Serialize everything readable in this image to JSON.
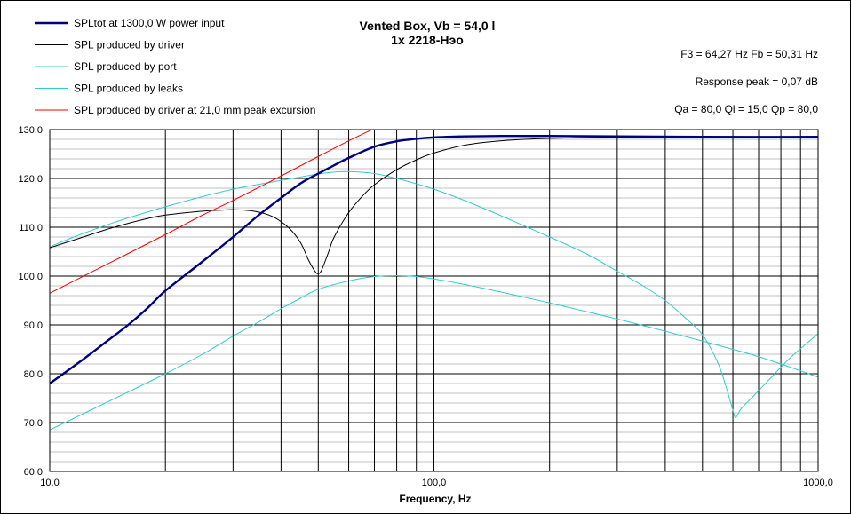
{
  "chart_data": {
    "type": "line",
    "title": "Vented Box, Vb = 54,0 l",
    "subtitle": "1x 2218-Нэо",
    "xlabel": "Frequency, Hz",
    "ylabel": "",
    "x_scale": "log",
    "xlim": [
      10,
      1000
    ],
    "ylim": [
      60,
      130
    ],
    "x_tick_labels": [
      {
        "value": 10,
        "label": "10,0"
      },
      {
        "value": 100,
        "label": "100,0"
      },
      {
        "value": 1000,
        "label": "1000,0"
      }
    ],
    "y_tick_labels": [
      {
        "value": 60,
        "label": "60,0"
      },
      {
        "value": 70,
        "label": "70,0"
      },
      {
        "value": 80,
        "label": "80,0"
      },
      {
        "value": 90,
        "label": "90,0"
      },
      {
        "value": 100,
        "label": "100,0"
      },
      {
        "value": 110,
        "label": "110,0"
      },
      {
        "value": 120,
        "label": "120,0"
      },
      {
        "value": 130,
        "label": "130,0"
      }
    ],
    "grid": true,
    "legend_position": "top-left",
    "info": {
      "line1": "F3 = 64,27  Hz   Fb = 50,31  Hz",
      "line2": "Response peak = 0,07 dB",
      "line3": "Qa = 80,0   Ql = 15,0   Qp = 80,0"
    },
    "series": [
      {
        "name": "SPLtot at 1300,0 W power input",
        "color": "#000080",
        "width": 2.4,
        "points": [
          [
            10,
            78
          ],
          [
            12,
            82.5
          ],
          [
            14,
            86.5
          ],
          [
            16,
            90
          ],
          [
            18,
            93.5
          ],
          [
            20,
            97
          ],
          [
            25,
            103
          ],
          [
            30,
            108
          ],
          [
            35,
            112.5
          ],
          [
            40,
            116
          ],
          [
            45,
            119
          ],
          [
            50,
            121
          ],
          [
            55,
            122.7
          ],
          [
            60,
            124.2
          ],
          [
            70,
            126.5
          ],
          [
            80,
            127.6
          ],
          [
            90,
            128.1
          ],
          [
            100,
            128.4
          ],
          [
            120,
            128.6
          ],
          [
            150,
            128.7
          ],
          [
            200,
            128.7
          ],
          [
            300,
            128.6
          ],
          [
            500,
            128.5
          ],
          [
            1000,
            128.5
          ]
        ]
      },
      {
        "name": "SPL produced by driver",
        "color": "#000000",
        "width": 1,
        "points": [
          [
            10,
            105.8
          ],
          [
            12,
            107.8
          ],
          [
            14,
            109.5
          ],
          [
            16,
            110.8
          ],
          [
            18,
            111.8
          ],
          [
            20,
            112.5
          ],
          [
            25,
            113.3
          ],
          [
            28,
            113.5
          ],
          [
            30,
            113.6
          ],
          [
            34,
            113.3
          ],
          [
            38,
            112.2
          ],
          [
            42,
            109.8
          ],
          [
            45,
            106.8
          ],
          [
            47,
            103.5
          ],
          [
            49,
            101
          ],
          [
            50,
            100.5
          ],
          [
            51,
            101.2
          ],
          [
            53,
            104.6
          ],
          [
            55,
            108
          ],
          [
            60,
            113
          ],
          [
            65,
            116.3
          ],
          [
            70,
            118.7
          ],
          [
            80,
            121.8
          ],
          [
            90,
            123.8
          ],
          [
            100,
            125.2
          ],
          [
            120,
            126.8
          ],
          [
            150,
            127.7
          ],
          [
            200,
            128.2
          ],
          [
            300,
            128.4
          ],
          [
            500,
            128.5
          ],
          [
            1000,
            128.5
          ]
        ]
      },
      {
        "name": "SPL produced by port",
        "color": "#33CCCC",
        "width": 1,
        "points": [
          [
            10,
            106
          ],
          [
            12,
            108.5
          ],
          [
            15,
            111.2
          ],
          [
            20,
            114.2
          ],
          [
            25,
            116.3
          ],
          [
            30,
            117.8
          ],
          [
            35,
            118.8
          ],
          [
            40,
            119.6
          ],
          [
            45,
            120.3
          ],
          [
            50,
            120.9
          ],
          [
            55,
            121.3
          ],
          [
            60,
            121.4
          ],
          [
            70,
            121
          ],
          [
            80,
            120
          ],
          [
            90,
            118.9
          ],
          [
            100,
            117.8
          ],
          [
            120,
            115.5
          ],
          [
            150,
            112.3
          ],
          [
            200,
            108
          ],
          [
            250,
            104.5
          ],
          [
            300,
            101
          ],
          [
            350,
            98
          ],
          [
            400,
            95
          ],
          [
            450,
            91.5
          ],
          [
            500,
            88
          ],
          [
            550,
            82
          ],
          [
            580,
            76.5
          ],
          [
            600,
            72.5
          ],
          [
            610,
            71
          ],
          [
            630,
            72.8
          ],
          [
            680,
            75.5
          ],
          [
            750,
            79
          ],
          [
            850,
            83.4
          ],
          [
            1000,
            88.2
          ]
        ]
      },
      {
        "name": "SPL produced by leaks",
        "color": "#33CCCC",
        "width": 1,
        "points": [
          [
            10,
            68.5
          ],
          [
            12,
            71.5
          ],
          [
            15,
            75.2
          ],
          [
            20,
            80
          ],
          [
            25,
            84
          ],
          [
            30,
            87.7
          ],
          [
            35,
            90.6
          ],
          [
            40,
            93.3
          ],
          [
            45,
            95.5
          ],
          [
            50,
            97.3
          ],
          [
            60,
            99
          ],
          [
            70,
            99.9
          ],
          [
            80,
            100.1
          ],
          [
            90,
            99.9
          ],
          [
            100,
            99.4
          ],
          [
            120,
            98.3
          ],
          [
            150,
            96.7
          ],
          [
            200,
            94.5
          ],
          [
            300,
            91.2
          ],
          [
            400,
            88.7
          ],
          [
            500,
            86.7
          ],
          [
            600,
            85
          ],
          [
            700,
            83.5
          ],
          [
            800,
            82
          ],
          [
            900,
            80.6
          ],
          [
            1000,
            79.3
          ]
        ]
      },
      {
        "name": "SPL produced by driver at 21,0 mm peak excursion",
        "color": "#FF0000",
        "width": 1,
        "points": [
          [
            10,
            96.5
          ],
          [
            15,
            103.5
          ],
          [
            20,
            108.5
          ],
          [
            25,
            112.5
          ],
          [
            30,
            115.5
          ],
          [
            40,
            120.5
          ],
          [
            50,
            124.5
          ],
          [
            60,
            127.7
          ],
          [
            69,
            130
          ]
        ]
      }
    ]
  }
}
